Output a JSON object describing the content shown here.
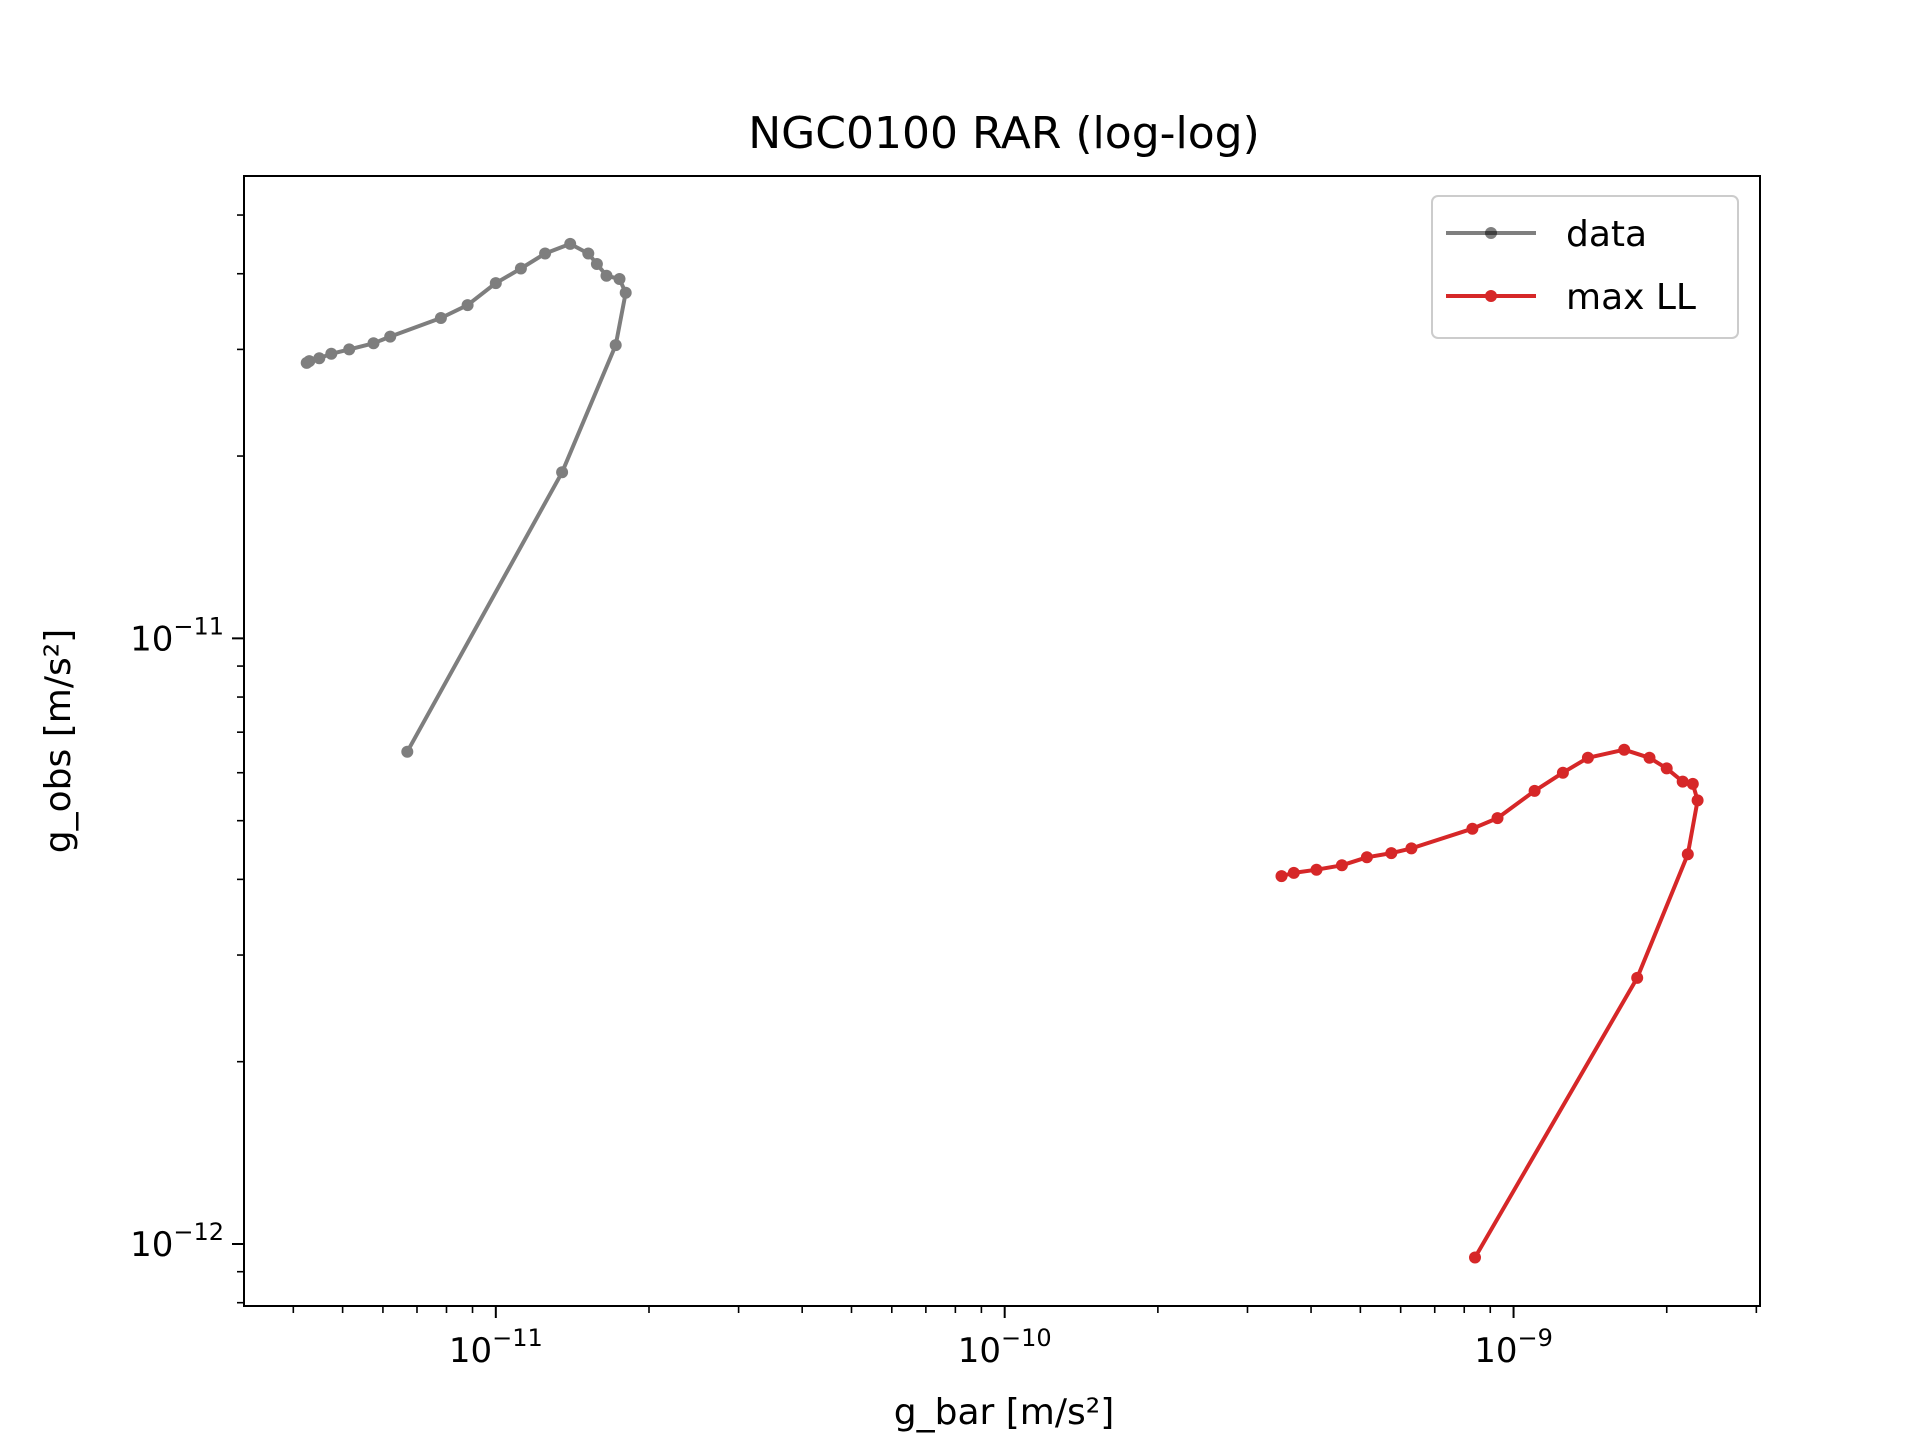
{
  "chart_data": {
    "type": "line",
    "title": "NGC0100 RAR (log-log)",
    "xlabel": "g_bar [m/s²]",
    "ylabel": "g_obs [m/s²]",
    "xscale": "log",
    "yscale": "log",
    "xlim": [
      3.2e-12,
      3.05e-09
    ],
    "ylim": [
      7.9e-13,
      5.8e-11
    ],
    "grid": false,
    "legend_position": "top-right",
    "x_ticks": [
      {
        "value": 1e-11,
        "base": "10",
        "exp": "−11"
      },
      {
        "value": 1e-10,
        "base": "10",
        "exp": "−10"
      },
      {
        "value": 1e-09,
        "base": "10",
        "exp": "−9"
      }
    ],
    "y_ticks": [
      {
        "value": 1e-12,
        "base": "10",
        "exp": "−12"
      },
      {
        "value": 1e-11,
        "base": "10",
        "exp": "−11"
      }
    ],
    "series": [
      {
        "name": "data",
        "color": "#000000",
        "opacity": 0.5,
        "points": [
          [
            6.7e-12,
            6.5e-12
          ],
          [
            1.35e-11,
            1.88e-11
          ],
          [
            1.72e-11,
            3.05e-11
          ],
          [
            1.8e-11,
            3.72e-11
          ],
          [
            1.75e-11,
            3.92e-11
          ],
          [
            1.65e-11,
            3.97e-11
          ],
          [
            1.58e-11,
            4.15e-11
          ],
          [
            1.52e-11,
            4.32e-11
          ],
          [
            1.4e-11,
            4.48e-11
          ],
          [
            1.25e-11,
            4.32e-11
          ],
          [
            1.12e-11,
            4.08e-11
          ],
          [
            1e-11,
            3.86e-11
          ],
          [
            8.8e-12,
            3.55e-11
          ],
          [
            7.8e-12,
            3.38e-11
          ],
          [
            6.2e-12,
            3.15e-11
          ],
          [
            5.75e-12,
            3.07e-11
          ],
          [
            5.15e-12,
            3e-11
          ],
          [
            4.75e-12,
            2.95e-11
          ],
          [
            4.5e-12,
            2.9e-11
          ],
          [
            4.3e-12,
            2.87e-11
          ],
          [
            4.25e-12,
            2.85e-11
          ]
        ]
      },
      {
        "name": "max LL",
        "color": "#d62728",
        "opacity": 1,
        "points": [
          [
            8.4e-10,
            9.5e-13
          ],
          [
            1.75e-09,
            2.75e-12
          ],
          [
            2.2e-09,
            4.4e-12
          ],
          [
            2.3e-09,
            5.4e-12
          ],
          [
            2.25e-09,
            5.75e-12
          ],
          [
            2.15e-09,
            5.8e-12
          ],
          [
            2e-09,
            6.1e-12
          ],
          [
            1.85e-09,
            6.35e-12
          ],
          [
            1.65e-09,
            6.55e-12
          ],
          [
            1.4e-09,
            6.35e-12
          ],
          [
            1.25e-09,
            6e-12
          ],
          [
            1.1e-09,
            5.6e-12
          ],
          [
            9.3e-10,
            5.05e-12
          ],
          [
            8.3e-10,
            4.85e-12
          ],
          [
            6.3e-10,
            4.5e-12
          ],
          [
            5.75e-10,
            4.42e-12
          ],
          [
            5.15e-10,
            4.35e-12
          ],
          [
            4.6e-10,
            4.22e-12
          ],
          [
            4.1e-10,
            4.15e-12
          ],
          [
            3.7e-10,
            4.1e-12
          ],
          [
            3.5e-10,
            4.05e-12
          ]
        ]
      }
    ]
  }
}
